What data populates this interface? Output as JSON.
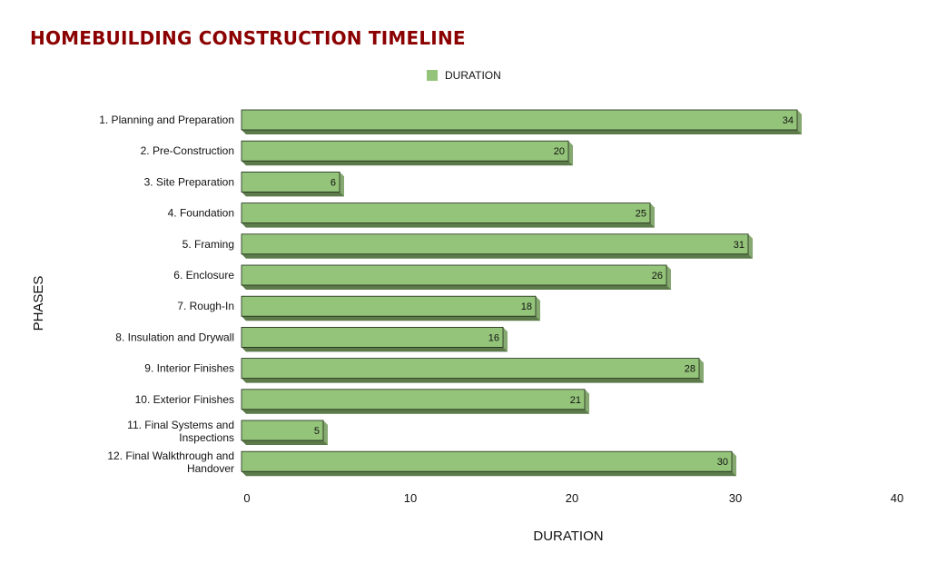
{
  "chart_data": {
    "type": "bar",
    "orientation": "horizontal",
    "title": "HOMEBUILDING CONSTRUCTION TIMELINE",
    "xlabel": "DURATION",
    "ylabel": "PHASES",
    "categories": [
      "1. Planning and Preparation",
      "2. Pre-Construction",
      "3. Site Preparation",
      "4. Foundation",
      "5. Framing",
      "6. Enclosure",
      "7. Rough-In",
      "8. Insulation and Drywall",
      "9. Interior Finishes",
      "10. Exterior Finishes",
      "11. Final Systems and Inspections",
      "12. Final Walkthrough and Handover"
    ],
    "series": [
      {
        "name": "DURATION",
        "values": [
          34,
          20,
          6,
          25,
          31,
          26,
          18,
          16,
          28,
          21,
          5,
          30
        ]
      }
    ],
    "xlim": [
      0,
      40
    ],
    "xticks": [
      0,
      10,
      20,
      30,
      40
    ],
    "grid": false,
    "legend": "top-center",
    "data_labels": true,
    "colors": {
      "bar": "#94c47a",
      "bar_shadow": "#5c7a4a",
      "bar_border": "#1e2a18",
      "title": "#8b0000"
    }
  }
}
